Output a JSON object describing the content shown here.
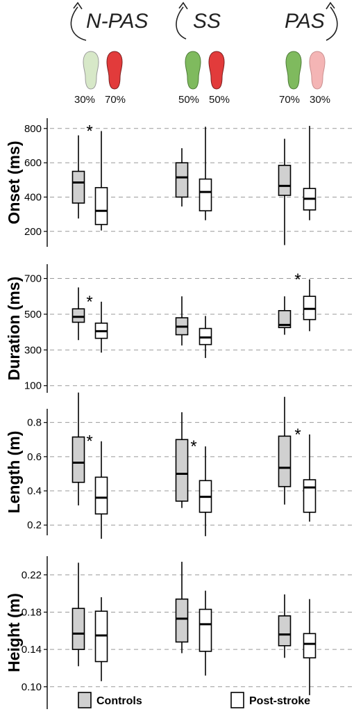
{
  "colors": {
    "controls_fill": "#d0d0d0",
    "post_stroke_fill": "#ffffff",
    "grid": "#999999",
    "foot_green": "#7fba5e",
    "foot_green_light": "#d7e8c8",
    "foot_red": "#e23b3b",
    "foot_red_light": "#f4b5b5"
  },
  "conditions": [
    {
      "label": "N-PAS",
      "left_pct": "30%",
      "right_pct": "70%",
      "left_foot": "foot_green_light",
      "right_foot": "foot_red",
      "arrow_side": "left"
    },
    {
      "label": "SS",
      "left_pct": "50%",
      "right_pct": "50%",
      "left_foot": "foot_green",
      "right_foot": "foot_red",
      "arrow_side": "left"
    },
    {
      "label": "PAS",
      "left_pct": "70%",
      "right_pct": "30%",
      "left_foot": "foot_green",
      "right_foot": "foot_red_light",
      "arrow_side": "right"
    }
  ],
  "legend": {
    "controls": "Controls",
    "post_stroke": "Post-stroke"
  },
  "chart_data": [
    {
      "type": "box",
      "ylabel": "Onset (ms)",
      "ylim": [
        110,
        860
      ],
      "yticks": [
        200,
        400,
        600,
        800
      ],
      "tick_labels": [
        "200",
        "400",
        "600",
        "800"
      ],
      "grid": true,
      "groups": [
        {
          "condition": "N-PAS",
          "significant": true,
          "controls": {
            "min": 275,
            "q1": 365,
            "median": 485,
            "q3": 550,
            "max": 760
          },
          "post_stroke": {
            "min": 205,
            "q1": 240,
            "median": 320,
            "q3": 455,
            "max": 785
          }
        },
        {
          "condition": "SS",
          "significant": false,
          "controls": {
            "min": 345,
            "q1": 400,
            "median": 515,
            "q3": 600,
            "max": 685
          },
          "post_stroke": {
            "min": 265,
            "q1": 320,
            "median": 430,
            "q3": 505,
            "max": 810
          }
        },
        {
          "condition": "PAS",
          "significant": false,
          "controls": {
            "min": 120,
            "q1": 410,
            "median": 465,
            "q3": 585,
            "max": 740
          },
          "post_stroke": {
            "min": 265,
            "q1": 325,
            "median": 390,
            "q3": 450,
            "max": 815
          }
        }
      ]
    },
    {
      "type": "box",
      "ylabel": "Duration (ms)",
      "ylim": [
        60,
        780
      ],
      "yticks": [
        100,
        300,
        500,
        700
      ],
      "tick_labels": [
        "100",
        "300",
        "500",
        "700"
      ],
      "grid": true,
      "groups": [
        {
          "condition": "N-PAS",
          "significant": true,
          "controls": {
            "min": 355,
            "q1": 455,
            "median": 485,
            "q3": 530,
            "max": 650
          },
          "post_stroke": {
            "min": 285,
            "q1": 365,
            "median": 405,
            "q3": 450,
            "max": 570
          }
        },
        {
          "condition": "SS",
          "significant": false,
          "controls": {
            "min": 325,
            "q1": 385,
            "median": 430,
            "q3": 480,
            "max": 600
          },
          "post_stroke": {
            "min": 255,
            "q1": 330,
            "median": 370,
            "q3": 420,
            "max": 490
          }
        },
        {
          "condition": "PAS",
          "significant": true,
          "controls": {
            "min": 385,
            "q1": 425,
            "median": 440,
            "q3": 520,
            "max": 600
          },
          "post_stroke": {
            "min": 405,
            "q1": 470,
            "median": 530,
            "q3": 600,
            "max": 695
          }
        }
      ]
    },
    {
      "type": "box",
      "ylabel": "Length (m)",
      "ylim": [
        0.14,
        0.88
      ],
      "yticks": [
        0.2,
        0.4,
        0.6,
        0.8
      ],
      "tick_labels": [
        "0.2",
        "0.4",
        "0.6",
        "0.8"
      ],
      "grid": true,
      "groups": [
        {
          "condition": "N-PAS",
          "significant": true,
          "controls": {
            "min": 0.315,
            "q1": 0.45,
            "median": 0.565,
            "q3": 0.715,
            "max": 0.975
          },
          "post_stroke": {
            "min": 0.12,
            "q1": 0.265,
            "median": 0.36,
            "q3": 0.48,
            "max": 0.69
          }
        },
        {
          "condition": "SS",
          "significant": true,
          "controls": {
            "min": 0.3,
            "q1": 0.34,
            "median": 0.5,
            "q3": 0.7,
            "max": 0.86
          },
          "post_stroke": {
            "min": 0.135,
            "q1": 0.275,
            "median": 0.365,
            "q3": 0.46,
            "max": 0.66
          }
        },
        {
          "condition": "PAS",
          "significant": true,
          "controls": {
            "min": 0.32,
            "q1": 0.425,
            "median": 0.535,
            "q3": 0.72,
            "max": 0.95
          },
          "post_stroke": {
            "min": 0.22,
            "q1": 0.275,
            "median": 0.42,
            "q3": 0.465,
            "max": 0.73
          }
        }
      ]
    },
    {
      "type": "box",
      "ylabel": "Height (m)",
      "ylim": [
        0.076,
        0.24
      ],
      "yticks": [
        0.1,
        0.14,
        0.18,
        0.22
      ],
      "tick_labels": [
        "0.10",
        "0.14",
        "0.18",
        "0.22"
      ],
      "grid": true,
      "groups": [
        {
          "condition": "N-PAS",
          "significant": false,
          "controls": {
            "min": 0.122,
            "q1": 0.14,
            "median": 0.157,
            "q3": 0.184,
            "max": 0.233
          },
          "post_stroke": {
            "min": 0.106,
            "q1": 0.127,
            "median": 0.155,
            "q3": 0.181,
            "max": 0.196
          }
        },
        {
          "condition": "SS",
          "significant": false,
          "controls": {
            "min": 0.136,
            "q1": 0.148,
            "median": 0.173,
            "q3": 0.194,
            "max": 0.234
          },
          "post_stroke": {
            "min": 0.112,
            "q1": 0.138,
            "median": 0.167,
            "q3": 0.183,
            "max": 0.203
          }
        },
        {
          "condition": "PAS",
          "significant": false,
          "controls": {
            "min": 0.131,
            "q1": 0.144,
            "median": 0.156,
            "q3": 0.176,
            "max": 0.199
          },
          "post_stroke": {
            "min": 0.091,
            "q1": 0.131,
            "median": 0.146,
            "q3": 0.157,
            "max": 0.194
          }
        }
      ]
    }
  ]
}
